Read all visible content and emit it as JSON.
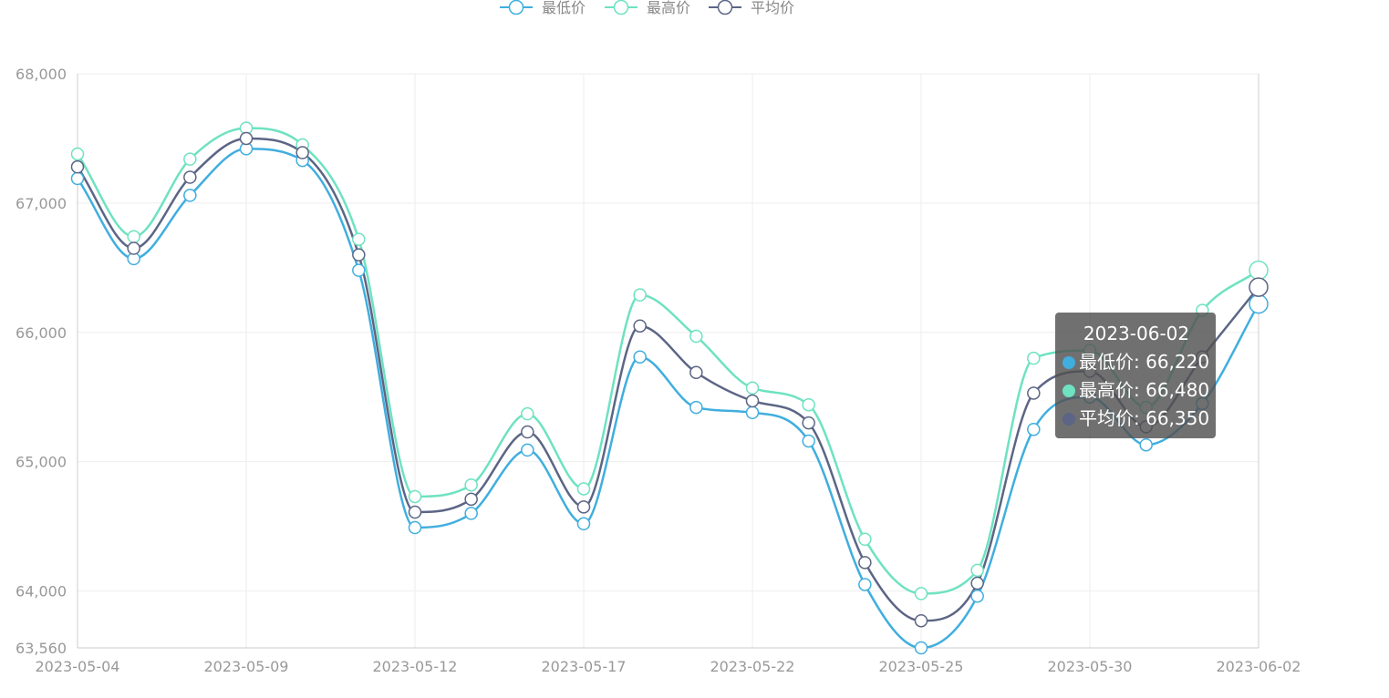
{
  "chart_data": {
    "type": "line",
    "title": "",
    "xlabel": "",
    "ylabel": "",
    "ylim": [
      63560,
      68000
    ],
    "y_ticks": [
      "68,000",
      "67,000",
      "66,000",
      "65,000",
      "64,000",
      "63,560"
    ],
    "y_tick_values": [
      68000,
      67000,
      66000,
      65000,
      64000,
      63560
    ],
    "x": [
      "2023-05-04",
      "2023-05-05",
      "2023-05-08",
      "2023-05-09",
      "2023-05-10",
      "2023-05-11",
      "2023-05-12",
      "2023-05-15",
      "2023-05-16",
      "2023-05-17",
      "2023-05-18",
      "2023-05-19",
      "2023-05-22",
      "2023-05-23",
      "2023-05-24",
      "2023-05-25",
      "2023-05-26",
      "2023-05-29",
      "2023-05-30",
      "2023-05-31",
      "2023-06-01",
      "2023-06-02"
    ],
    "x_tick_labels": [
      "2023-05-04",
      "2023-05-09",
      "2023-05-12",
      "2023-05-17",
      "2023-05-22",
      "2023-05-25",
      "2023-05-30",
      "2023-06-02"
    ],
    "x_tick_indices": [
      0,
      3,
      6,
      9,
      12,
      15,
      18,
      21
    ],
    "legend_position": "top-center",
    "grid": true,
    "smooth": true,
    "series": [
      {
        "name": "最低价",
        "color": "#40aede",
        "values": [
          67190,
          66570,
          67060,
          67420,
          67330,
          66480,
          64490,
          64600,
          65090,
          64520,
          65810,
          65420,
          65380,
          65160,
          64050,
          63560,
          63960,
          65250,
          65500,
          65130,
          65450,
          66220
        ]
      },
      {
        "name": "最高价",
        "color": "#6ee2c1",
        "values": [
          67380,
          66740,
          67340,
          67580,
          67450,
          66720,
          64730,
          64820,
          65370,
          64790,
          66290,
          65970,
          65570,
          65440,
          64400,
          63980,
          64160,
          65800,
          65860,
          65420,
          66170,
          66480
        ]
      },
      {
        "name": "平均价",
        "color": "#5c6585",
        "values": [
          67280,
          66650,
          67200,
          67500,
          67390,
          66600,
          64610,
          64710,
          65230,
          64650,
          66050,
          65690,
          65470,
          65300,
          64220,
          63770,
          64060,
          65530,
          65700,
          65270,
          65810,
          66350
        ]
      }
    ],
    "tooltip": {
      "title": "2023-06-02",
      "rows": [
        {
          "label": "最低价: 66,220",
          "color": "#40aede"
        },
        {
          "label": "最高价: 66,480",
          "color": "#6ee2c1"
        },
        {
          "label": "平均价: 66,350",
          "color": "#5c6585"
        }
      ]
    }
  }
}
